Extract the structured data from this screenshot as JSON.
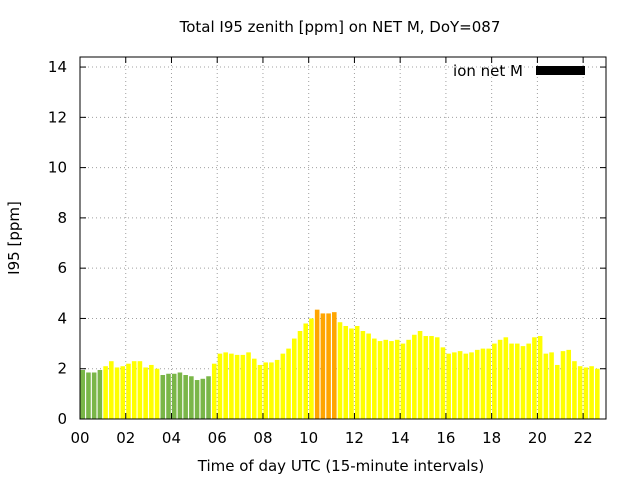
{
  "chart_data": {
    "type": "bar",
    "title": "Total I95 zenith [ppm] on NET M, DoY=087",
    "xlabel": "Time of day UTC (15-minute intervals)",
    "ylabel": "I95 [ppm]",
    "xlim": [
      0,
      23
    ],
    "ylim": [
      0,
      14.4
    ],
    "x_ticks": [
      "00",
      "02",
      "04",
      "06",
      "08",
      "10",
      "12",
      "14",
      "16",
      "18",
      "20",
      "22"
    ],
    "y_ticks": [
      "0",
      "2",
      "4",
      "6",
      "8",
      "10",
      "12",
      "14"
    ],
    "grid": true,
    "legend": {
      "placement": "top-right",
      "entries": [
        {
          "label": "ion net M",
          "color": "#000000"
        }
      ]
    },
    "level_colors": {
      "low": "#7ab648",
      "mid": "#ffff00",
      "high": "#ffa500"
    },
    "bar_width_hours": 0.2,
    "series": [
      {
        "x": [
          0,
          0.25,
          0.5,
          0.75,
          1,
          1.25,
          1.5,
          1.75,
          2,
          2.25,
          2.5,
          2.75,
          3,
          3.25,
          3.5,
          3.75,
          4,
          4.25,
          4.5,
          4.75,
          5,
          5.25,
          5.5,
          5.75,
          6,
          6.25,
          6.5,
          6.75,
          7,
          7.25,
          7.5,
          7.75,
          8,
          8.25,
          8.5,
          8.75,
          9,
          9.25,
          9.5,
          9.75,
          10,
          10.25,
          10.5,
          10.75,
          11,
          11.25,
          11.5,
          11.75,
          12,
          12.25,
          12.5,
          12.75,
          13,
          13.25,
          13.5,
          13.75,
          14,
          14.25,
          14.5,
          14.75,
          15,
          15.25,
          15.5,
          15.75,
          16,
          16.25,
          16.5,
          16.75,
          17,
          17.25,
          17.5,
          17.75,
          18,
          18.25,
          18.5,
          18.75,
          19,
          19.25,
          19.5,
          19.75,
          20,
          20.25,
          20.5,
          20.75,
          21,
          21.25,
          21.5,
          21.75,
          22,
          22.25,
          22.5
        ],
        "values": [
          1.95,
          1.85,
          1.85,
          1.95,
          2.1,
          2.3,
          2.05,
          2.1,
          2.2,
          2.3,
          2.3,
          2.05,
          2.15,
          2.0,
          1.75,
          1.8,
          1.8,
          1.85,
          1.75,
          1.7,
          1.55,
          1.6,
          1.7,
          2.2,
          2.6,
          2.65,
          2.6,
          2.55,
          2.55,
          2.65,
          2.4,
          2.15,
          2.25,
          2.25,
          2.35,
          2.6,
          2.8,
          3.2,
          3.5,
          3.8,
          4.0,
          4.35,
          4.2,
          4.2,
          4.25,
          3.85,
          3.7,
          3.6,
          3.7,
          3.5,
          3.4,
          3.2,
          3.1,
          3.15,
          3.1,
          3.15,
          3.0,
          3.15,
          3.35,
          3.5,
          3.3,
          3.3,
          3.25,
          2.85,
          2.6,
          2.65,
          2.7,
          2.6,
          2.65,
          2.75,
          2.8,
          2.8,
          3.0,
          3.15,
          3.25,
          3.0,
          3.0,
          2.9,
          3.0,
          3.25,
          3.3,
          2.6,
          2.65,
          2.15,
          2.7,
          2.75,
          2.3,
          2.1,
          2.05,
          2.1,
          2.0
        ],
        "levels": [
          "low",
          "low",
          "low",
          "low",
          "mid",
          "mid",
          "mid",
          "mid",
          "mid",
          "mid",
          "mid",
          "mid",
          "mid",
          "mid",
          "low",
          "low",
          "low",
          "low",
          "low",
          "low",
          "low",
          "low",
          "low",
          "mid",
          "mid",
          "mid",
          "mid",
          "mid",
          "mid",
          "mid",
          "mid",
          "mid",
          "mid",
          "mid",
          "mid",
          "mid",
          "mid",
          "mid",
          "mid",
          "mid",
          "mid",
          "high",
          "high",
          "high",
          "high",
          "mid",
          "mid",
          "mid",
          "mid",
          "mid",
          "mid",
          "mid",
          "mid",
          "mid",
          "mid",
          "mid",
          "mid",
          "mid",
          "mid",
          "mid",
          "mid",
          "mid",
          "mid",
          "mid",
          "mid",
          "mid",
          "mid",
          "mid",
          "mid",
          "mid",
          "mid",
          "mid",
          "mid",
          "mid",
          "mid",
          "mid",
          "mid",
          "mid",
          "mid",
          "mid",
          "mid",
          "mid",
          "mid",
          "mid",
          "mid",
          "mid",
          "mid",
          "mid",
          "mid",
          "mid",
          "mid"
        ]
      }
    ]
  }
}
